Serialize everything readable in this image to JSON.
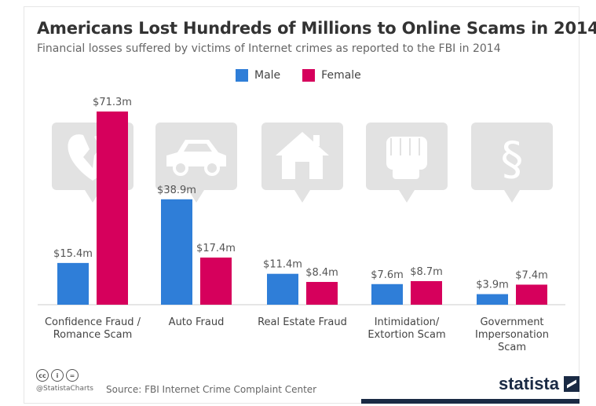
{
  "header": {
    "title": "Americans Lost Hundreds of Millions to Online Scams in 2014",
    "subtitle": "Financial losses suffered by victims of Internet crimes as reported to the FBI in 2014"
  },
  "chart_data": {
    "type": "bar",
    "categories": [
      [
        "Confidence Fraud /",
        "Romance Scam"
      ],
      [
        "Auto Fraud"
      ],
      [
        "Real Estate Fraud"
      ],
      [
        "Intimidation/",
        "Extortion Scam"
      ],
      [
        "Government",
        "Impersonation",
        "Scam"
      ]
    ],
    "icons": [
      "broken-heart-icon",
      "car-icon",
      "house-icon",
      "fist-icon",
      "section-sign-icon"
    ],
    "series": [
      {
        "name": "Male",
        "color": "#2f7ed8",
        "values": [
          15.4,
          38.9,
          11.4,
          7.6,
          3.9
        ],
        "labels": [
          "$15.4m",
          "$38.9m",
          "$11.4m",
          "$7.6m",
          "$3.9m"
        ]
      },
      {
        "name": "Female",
        "color": "#d6005c",
        "values": [
          71.3,
          17.4,
          8.4,
          8.7,
          7.4
        ],
        "labels": [
          "$71.3m",
          "$17.4m",
          "$8.4m",
          "$8.7m",
          "$7.4m"
        ]
      }
    ],
    "ylim": [
      0,
      71.3
    ],
    "legend_position": "top-center",
    "grid": false
  },
  "footer": {
    "cc_icons": [
      "cc-icon",
      "by-icon",
      "nd-icon"
    ],
    "cc_glyphs": [
      "cc",
      "i",
      "="
    ],
    "handle": "@StatistaCharts",
    "source": "Source: FBI Internet Crime Complaint Center",
    "brand": "statista"
  }
}
